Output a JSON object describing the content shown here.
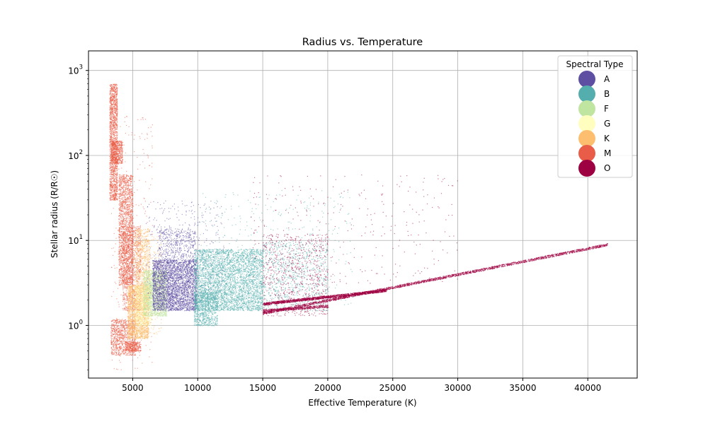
{
  "chart_data": {
    "type": "scatter",
    "title": "Radius vs. Temperature",
    "xlabel": "Effective Temperature (K)",
    "ylabel": "Stellar radius (R/R☉)",
    "xlim": [
      1600,
      43800
    ],
    "ylim": [
      0.24,
      1700
    ],
    "yscale": "log",
    "grid": true,
    "x_ticks": [
      5000,
      10000,
      15000,
      20000,
      25000,
      30000,
      35000,
      40000
    ],
    "y_ticks": [
      1,
      10,
      100,
      1000
    ],
    "legend": {
      "title": "Spectral Type",
      "placement": "top-right",
      "entries": [
        {
          "label": "A",
          "color": "#5e4fa2"
        },
        {
          "label": "B",
          "color": "#54aead"
        },
        {
          "label": "F",
          "color": "#bfe5a0"
        },
        {
          "label": "G",
          "color": "#fffebe"
        },
        {
          "label": "K",
          "color": "#fdbf6f"
        },
        {
          "label": "M",
          "color": "#e95c47"
        },
        {
          "label": "O",
          "color": "#9e0142"
        }
      ]
    },
    "series": [
      {
        "name": "M",
        "color": "#e95c47",
        "regions": [
          {
            "x": [
              3200,
              3800
            ],
            "y": [
              30,
              700
            ],
            "n": 1600
          },
          {
            "x": [
              3300,
              4200
            ],
            "y": [
              80,
              150
            ],
            "n": 500
          },
          {
            "x": [
              3900,
              5000
            ],
            "y": [
              3,
              60
            ],
            "n": 1800
          },
          {
            "x": [
              4200,
              5600
            ],
            "y": [
              1.5,
              15
            ],
            "n": 900
          },
          {
            "x": [
              3300,
              5200
            ],
            "y": [
              0.45,
              1.2
            ],
            "n": 900
          },
          {
            "x": [
              4400,
              5600
            ],
            "y": [
              0.5,
              0.65
            ],
            "n": 300
          },
          {
            "x": [
              3300,
              6500
            ],
            "y": [
              0.3,
              300
            ],
            "n": 300
          }
        ]
      },
      {
        "name": "K",
        "color": "#fdbf6f",
        "regions": [
          {
            "x": [
              4600,
              6200
            ],
            "y": [
              0.7,
              3
            ],
            "n": 2000
          },
          {
            "x": [
              5200,
              6300
            ],
            "y": [
              1.5,
              14
            ],
            "n": 800
          },
          {
            "x": [
              5000,
              7200
            ],
            "y": [
              0.8,
              12
            ],
            "n": 400
          }
        ]
      },
      {
        "name": "G",
        "color": "#fffebe",
        "regions": [
          {
            "x": [
              5200,
              6400
            ],
            "y": [
              1,
              3
            ],
            "n": 700
          }
        ]
      },
      {
        "name": "F",
        "color": "#bfe5a0",
        "regions": [
          {
            "x": [
              5800,
              7600
            ],
            "y": [
              1.3,
              4.5
            ],
            "n": 1600
          }
        ]
      },
      {
        "name": "A",
        "color": "#5e4fa2",
        "regions": [
          {
            "x": [
              6500,
              9900
            ],
            "y": [
              1.5,
              6
            ],
            "n": 3200
          },
          {
            "x": [
              7000,
              9800
            ],
            "y": [
              6,
              14
            ],
            "n": 400
          },
          {
            "x": [
              6000,
              12000
            ],
            "y": [
              2,
              30
            ],
            "n": 400
          }
        ]
      },
      {
        "name": "B",
        "color": "#54aead",
        "regions": [
          {
            "x": [
              9700,
              15000
            ],
            "y": [
              1.5,
              8
            ],
            "n": 3800
          },
          {
            "x": [
              9700,
              11500
            ],
            "y": [
              1,
              2.5
            ],
            "n": 800
          },
          {
            "x": [
              15000,
              20000
            ],
            "y": [
              1.5,
              10
            ],
            "n": 800
          },
          {
            "x": [
              10000,
              22000
            ],
            "y": [
              1.5,
              40
            ],
            "n": 400
          }
        ]
      },
      {
        "name": "O",
        "color": "#9e0142",
        "regions": [
          {
            "x": [
              15000,
              20000
            ],
            "y": [
              1.3,
              12
            ],
            "n": 700
          },
          {
            "x": [
              14000,
              30000
            ],
            "y": [
              3,
              60
            ],
            "n": 300
          }
        ],
        "bands": [
          {
            "x0": 15000,
            "y0": 1.8,
            "x1": 24500,
            "y1": 2.6,
            "n": 1600
          },
          {
            "x0": 15000,
            "y0": 1.4,
            "x1": 41500,
            "y1": 9.0,
            "n": 2400
          },
          {
            "x0": 15000,
            "y0": 1.5,
            "x1": 20000,
            "y1": 1.7,
            "n": 500
          }
        ]
      }
    ]
  }
}
